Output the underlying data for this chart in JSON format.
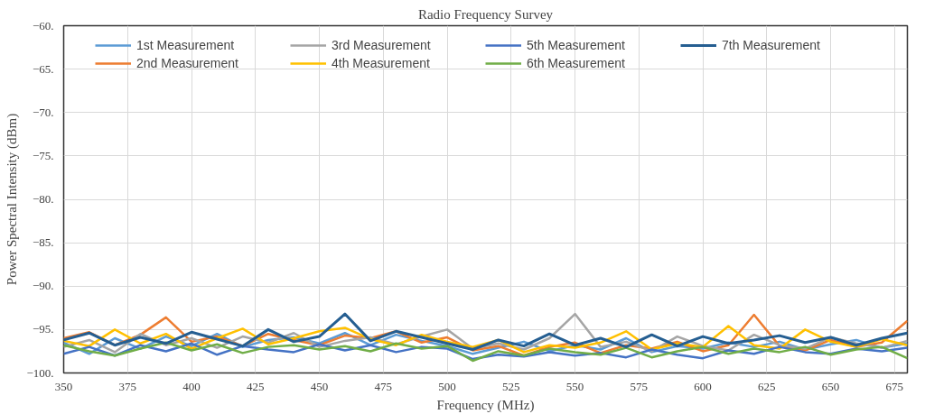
{
  "chart_data": {
    "type": "line",
    "title": "Radio Frequency Survey",
    "xlabel": "Frequency (MHz)",
    "ylabel": "Power Spectral Intensity (dBm)",
    "x": [
      350,
      360,
      370,
      380,
      390,
      400,
      410,
      420,
      430,
      440,
      450,
      460,
      470,
      480,
      490,
      500,
      510,
      520,
      530,
      540,
      550,
      560,
      570,
      580,
      590,
      600,
      610,
      620,
      630,
      640,
      650,
      660,
      670,
      680
    ],
    "series": [
      {
        "name": "1st Measurement",
        "color": "#5b9bd5",
        "values": [
          -96.5,
          -97.8,
          -96.0,
          -97.2,
          -95.8,
          -96.9,
          -95.5,
          -97.0,
          -96.2,
          -95.9,
          -96.6,
          -95.4,
          -96.8,
          -95.6,
          -96.3,
          -96.9,
          -97.8,
          -97.1,
          -96.4,
          -97.5,
          -96.8,
          -97.3,
          -96.0,
          -97.6,
          -96.9,
          -97.2,
          -96.5,
          -97.0,
          -96.4,
          -97.3,
          -96.7,
          -96.2,
          -97.1,
          -96.6
        ]
      },
      {
        "name": "2nd Measurement",
        "color": "#ed7d31",
        "values": [
          -96.0,
          -95.3,
          -96.8,
          -95.6,
          -93.6,
          -96.4,
          -95.8,
          -96.9,
          -95.5,
          -96.2,
          -96.8,
          -95.7,
          -96.0,
          -95.2,
          -96.5,
          -95.9,
          -97.4,
          -96.9,
          -98.0,
          -97.0,
          -96.5,
          -97.7,
          -96.8,
          -97.2,
          -96.4,
          -97.5,
          -96.8,
          -93.3,
          -96.9,
          -97.4,
          -96.2,
          -97.0,
          -96.5,
          -94.0
        ]
      },
      {
        "name": "3rd Measurement",
        "color": "#a5a5a5",
        "values": [
          -97.0,
          -96.2,
          -97.6,
          -95.5,
          -96.8,
          -96.0,
          -97.1,
          -95.8,
          -96.5,
          -95.4,
          -97.0,
          -96.3,
          -95.9,
          -96.7,
          -95.8,
          -95.0,
          -97.2,
          -96.6,
          -97.3,
          -96.0,
          -93.2,
          -97.0,
          -96.4,
          -97.5,
          -95.8,
          -96.9,
          -97.4,
          -95.6,
          -96.8,
          -97.2,
          -95.9,
          -96.6,
          -97.1,
          -96.3
        ]
      },
      {
        "name": "4th Measurement",
        "color": "#ffc000",
        "values": [
          -96.3,
          -96.9,
          -95.0,
          -96.6,
          -95.5,
          -97.2,
          -96.0,
          -94.9,
          -96.7,
          -96.0,
          -95.2,
          -94.8,
          -96.1,
          -96.8,
          -95.6,
          -96.4,
          -97.0,
          -96.2,
          -97.6,
          -96.8,
          -97.1,
          -96.5,
          -95.2,
          -97.3,
          -96.6,
          -97.0,
          -94.6,
          -96.8,
          -97.2,
          -95.0,
          -96.4,
          -97.0,
          -96.1,
          -96.8
        ]
      },
      {
        "name": "5th Measurement",
        "color": "#4472c4",
        "values": [
          -97.8,
          -97.0,
          -98.0,
          -96.8,
          -97.5,
          -96.6,
          -97.9,
          -96.9,
          -97.3,
          -97.6,
          -96.7,
          -97.4,
          -96.8,
          -97.6,
          -97.0,
          -97.2,
          -98.4,
          -97.9,
          -98.1,
          -97.6,
          -98.0,
          -97.7,
          -98.2,
          -97.3,
          -97.9,
          -98.3,
          -97.4,
          -97.8,
          -97.0,
          -97.6,
          -97.8,
          -97.2,
          -97.5,
          -97.1
        ]
      },
      {
        "name": "6th Measurement",
        "color": "#70ad47",
        "values": [
          -96.8,
          -97.5,
          -98.0,
          -97.2,
          -96.5,
          -97.4,
          -96.7,
          -97.7,
          -97.0,
          -96.8,
          -97.3,
          -96.9,
          -97.5,
          -96.6,
          -97.2,
          -96.9,
          -98.6,
          -97.5,
          -98.0,
          -97.2,
          -97.6,
          -97.9,
          -97.1,
          -98.2,
          -97.5,
          -97.0,
          -97.8,
          -97.2,
          -97.6,
          -97.0,
          -97.9,
          -97.3,
          -97.0,
          -98.3
        ]
      },
      {
        "name": "7th Measurement",
        "color": "#255e91",
        "values": [
          -96.2,
          -95.4,
          -96.8,
          -95.9,
          -96.6,
          -95.3,
          -96.1,
          -96.9,
          -95.0,
          -96.4,
          -95.8,
          -93.2,
          -96.3,
          -95.2,
          -95.9,
          -96.6,
          -97.3,
          -96.2,
          -96.9,
          -95.5,
          -96.8,
          -96.0,
          -97.0,
          -95.6,
          -96.9,
          -95.8,
          -96.6,
          -96.2,
          -95.7,
          -96.5,
          -95.9,
          -96.8,
          -96.0,
          -95.4
        ]
      }
    ],
    "xlim": [
      350,
      680
    ],
    "ylim": [
      -100,
      -60
    ],
    "xticks": [
      350,
      375,
      400,
      425,
      450,
      475,
      500,
      525,
      550,
      575,
      600,
      625,
      650,
      675
    ],
    "yticks": [
      {
        "value": -60,
        "label": "−60."
      },
      {
        "value": -65,
        "label": "−65."
      },
      {
        "value": -70,
        "label": "−70."
      },
      {
        "value": -75,
        "label": "−75."
      },
      {
        "value": -80,
        "label": "−80."
      },
      {
        "value": -85,
        "label": "−85."
      },
      {
        "value": -90,
        "label": "−90."
      },
      {
        "value": -95,
        "label": "−95."
      },
      {
        "value": -100,
        "label": "−100."
      }
    ],
    "grid": true,
    "legend": "top",
    "marker": "none",
    "line_style": "solid"
  }
}
